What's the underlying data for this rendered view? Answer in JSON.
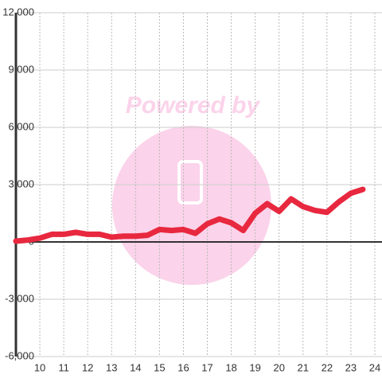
{
  "chart_data": {
    "type": "line",
    "watermark": "Powered by",
    "x": [
      9,
      9.5,
      10,
      10.5,
      11,
      11.5,
      12,
      12.5,
      13,
      13.5,
      14,
      14.5,
      15,
      15.5,
      16,
      16.5,
      17,
      17.5,
      18,
      18.5,
      19,
      19.5,
      20,
      20.5,
      21,
      21.5,
      22,
      22.5,
      23,
      23.5
    ],
    "series": [
      {
        "name": null,
        "color": "#e8283f",
        "values": [
          40,
          100,
          200,
          400,
          400,
          500,
          400,
          400,
          250,
          300,
          300,
          350,
          650,
          600,
          650,
          450,
          950,
          1200,
          1000,
          600,
          1500,
          2000,
          1600,
          2250,
          1850,
          1650,
          1550,
          2100,
          2550,
          2750
        ]
      }
    ],
    "xlim": [
      9,
      24.3
    ],
    "xticks": [
      10,
      11,
      12,
      13,
      14,
      15,
      16,
      17,
      18,
      19,
      20,
      21,
      22,
      23,
      24
    ],
    "ylim": [
      -6000,
      12000
    ],
    "yticks": [
      {
        "value": -6000,
        "label": "-6,000"
      },
      {
        "value": -3000,
        "label": "-3,000"
      },
      0,
      {
        "value": 3000,
        "label": "3,000"
      },
      {
        "value": 6000,
        "label": "6,000"
      },
      {
        "value": 9000,
        "label": "9,000"
      },
      {
        "value": 12000,
        "label": "12,000"
      }
    ],
    "grid": true
  }
}
